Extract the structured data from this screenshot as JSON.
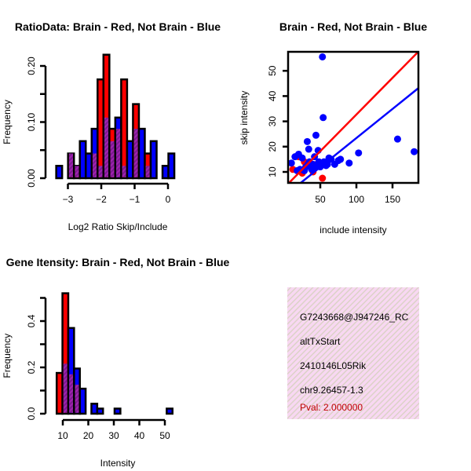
{
  "colors": {
    "red": "#ff0000",
    "blue": "#0000ff",
    "overlap": "#8b1a9b",
    "pval": "#c00000",
    "panel_bg": "#f6d8f0"
  },
  "chart_data": [
    {
      "type": "bar",
      "id": "ratio-hist",
      "title": "RatioData: Brain - Red, Not Brain - Blue",
      "xlabel": "Log2 Ratio Skip/Include",
      "ylabel": "Frequency",
      "xticks": [
        -3,
        -2,
        -1,
        0
      ],
      "xtick_labels": [
        "−3",
        "−2",
        "−1",
        "0"
      ],
      "yticks": [
        0,
        0.05,
        0.1,
        0.15,
        0.2
      ],
      "ytick_labels": [
        "0.00",
        "",
        "0.10",
        "",
        "0.20"
      ],
      "bin_start": -3.35,
      "bin_width": 0.177,
      "series": [
        {
          "name": "Brain",
          "color": "red",
          "values": [
            0,
            0,
            0.044,
            0.022,
            0,
            0,
            0.044,
            0.176,
            0.22,
            0.088,
            0.088,
            0.176,
            0,
            0.132,
            0,
            0.044,
            0,
            0,
            0,
            0
          ]
        },
        {
          "name": "Not Brain",
          "color": "blue",
          "values": [
            0.022,
            0,
            0.044,
            0.022,
            0.066,
            0.044,
            0.088,
            0.022,
            0.108,
            0.066,
            0.108,
            0.022,
            0.066,
            0.088,
            0.088,
            0.022,
            0.066,
            0,
            0.022,
            0.044
          ]
        }
      ]
    },
    {
      "type": "scatter",
      "id": "intensity-scatter",
      "title": "Brain - Red, Not Brain - Blue",
      "xlabel": "include intensity",
      "ylabel": "skip intensity",
      "xlim": [
        5.4,
        186
      ],
      "ylim": [
        5.6,
        57.4
      ],
      "xticks": [
        50,
        100,
        150
      ],
      "yticks": [
        10,
        20,
        30,
        40,
        50
      ],
      "series": [
        {
          "name": "Not Brain",
          "color": "blue",
          "points": [
            [
              53,
              55.5
            ],
            [
              54,
              31.5
            ],
            [
              44,
              24.5
            ],
            [
              32,
              22
            ],
            [
              34,
              19
            ],
            [
              47,
              18.5
            ],
            [
              103,
              17.5
            ],
            [
              157,
              23
            ],
            [
              180,
              18
            ],
            [
              90,
              13.5
            ],
            [
              10,
              13.5
            ],
            [
              15,
              16
            ],
            [
              20,
              17
            ],
            [
              25,
              15.5
            ],
            [
              30,
              12
            ],
            [
              35,
              14
            ],
            [
              40,
              13
            ],
            [
              50,
              12
            ],
            [
              55,
              14
            ],
            [
              60,
              13
            ],
            [
              65,
              15
            ],
            [
              70,
              13
            ],
            [
              75,
              14.5
            ],
            [
              78,
              15
            ],
            [
              22,
              11
            ],
            [
              28,
              10.5
            ],
            [
              38,
              11
            ],
            [
              45,
              12
            ],
            [
              18,
              10.5
            ],
            [
              42,
              16
            ],
            [
              58,
              12.5
            ],
            [
              48,
              14
            ],
            [
              62,
              15.5
            ],
            [
              33,
              13
            ]
          ]
        },
        {
          "name": "Brain",
          "color": "red",
          "points": [
            [
              53,
              7.5
            ],
            [
              12,
              11
            ],
            [
              25,
              9.5
            ],
            [
              30,
              12
            ],
            [
              35,
              13
            ],
            [
              20,
              16
            ],
            [
              45,
              13
            ],
            [
              40,
              10
            ],
            [
              28,
              14
            ]
          ]
        }
      ],
      "fit_lines": [
        {
          "color": "red",
          "intercept": 3.7,
          "slope": 0.29
        },
        {
          "color": "blue",
          "intercept": 0.4,
          "slope": 0.23
        }
      ]
    },
    {
      "type": "bar",
      "id": "intensity-hist",
      "title": "Gene Itensity: Brain - Red, Not Brain - Blue",
      "xlabel": "Intensity",
      "ylabel": "Frequency",
      "xticks": [
        10,
        20,
        30,
        40,
        50
      ],
      "xtick_labels": [
        "10",
        "20",
        "30",
        "40",
        "50"
      ],
      "yticks": [
        0,
        0.1,
        0.2,
        0.3,
        0.4,
        0.5
      ],
      "ytick_labels": [
        "0.0",
        "",
        "0.2",
        "",
        "0.4",
        ""
      ],
      "bin_start": 7.6,
      "bin_width": 2.27,
      "series": [
        {
          "name": "Brain",
          "color": "red",
          "values": [
            0.176,
            0.52,
            0.17,
            0.125,
            0,
            0,
            0,
            0,
            0,
            0,
            0,
            0,
            0,
            0,
            0,
            0,
            0,
            0,
            0,
            0
          ]
        },
        {
          "name": "Not Brain",
          "color": "blue",
          "values": [
            0,
            0.216,
            0.37,
            0.195,
            0.108,
            0,
            0.043,
            0.022,
            0,
            0,
            0.022,
            0,
            0,
            0,
            0,
            0,
            0,
            0,
            0,
            0.022
          ]
        }
      ]
    }
  ],
  "info_panel": {
    "lines": [
      "G7243668@J947246_RC",
      "altTxStart",
      "2410146L05Rik",
      "chr9.26457-1.3"
    ],
    "pval": "Pval: 2.000000"
  }
}
